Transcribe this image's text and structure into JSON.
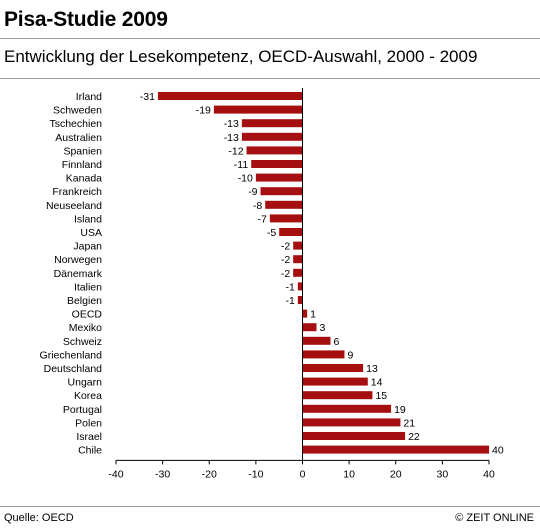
{
  "header": {
    "title": "Pisa-Studie 2009",
    "subtitle": "Entwicklung der Lesekompetenz, OECD-Auswahl, 2000 - 2009"
  },
  "footer": {
    "source": "Quelle: OECD",
    "credit": "© ZEIT ONLINE"
  },
  "colors": {
    "bar": "#a50f10",
    "axis": "#000000",
    "rule": "#9a9a9a"
  },
  "chart_data": {
    "type": "bar",
    "orientation": "horizontal",
    "categories": [
      "Irland",
      "Schweden",
      "Tschechien",
      "Australien",
      "Spanien",
      "Finnland",
      "Kanada",
      "Frankreich",
      "Neuseeland",
      "Island",
      "USA",
      "Japan",
      "Norwegen",
      "Dänemark",
      "Italien",
      "Belgien",
      "OECD",
      "Mexiko",
      "Schweiz",
      "Griechenland",
      "Deutschland",
      "Ungarn",
      "Korea",
      "Portugal",
      "Polen",
      "Israel",
      "Chile"
    ],
    "values": [
      -31,
      -19,
      -13,
      -13,
      -12,
      -11,
      -10,
      -9,
      -8,
      -7,
      -5,
      -2,
      -2,
      -2,
      -1,
      -1,
      1,
      3,
      6,
      9,
      13,
      14,
      15,
      19,
      21,
      22,
      40
    ],
    "xlim": [
      -40,
      40
    ],
    "xticks": [
      -40,
      -30,
      -20,
      -10,
      0,
      10,
      20,
      30,
      40
    ],
    "grid": false,
    "legend": false,
    "data_labels": true
  }
}
